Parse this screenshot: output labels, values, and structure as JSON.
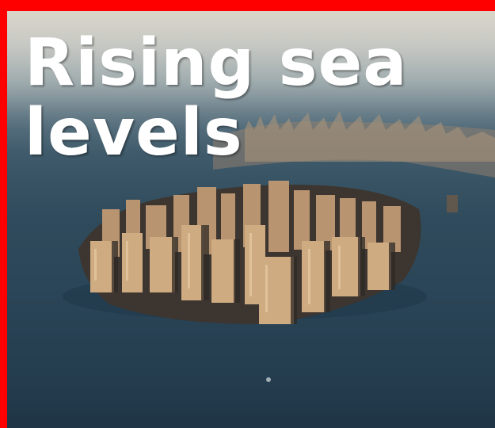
{
  "headline": "Rising sea levels",
  "photo": {
    "subject": "flooded-city-aerial",
    "colors": {
      "frame": "#ff0000",
      "water": "#2f4b5c",
      "sky": "#c9d2d6",
      "buildings_lit": "#c9a27a",
      "buildings_shadow": "#4a4038",
      "headline_text": "#ffffff"
    }
  }
}
